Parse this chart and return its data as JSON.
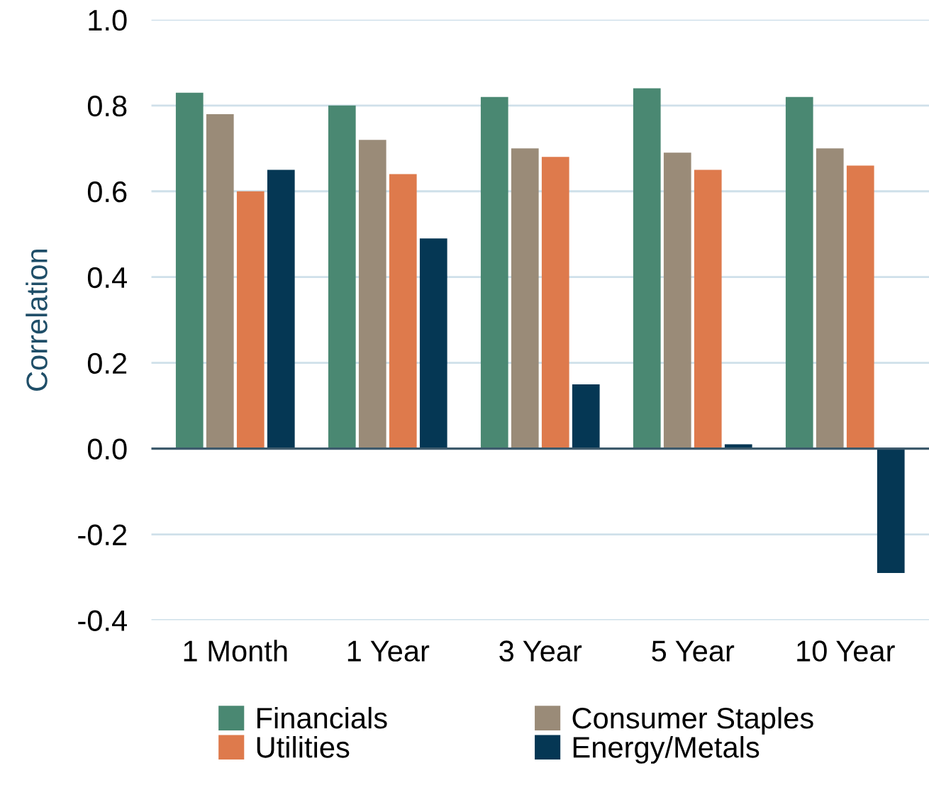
{
  "chart_data": {
    "type": "bar",
    "ylabel": "Correlation",
    "categories": [
      "1 Month",
      "1 Year",
      "3 Year",
      "5 Year",
      "10 Year"
    ],
    "series": [
      {
        "name": "Financials",
        "color": "#4a8872",
        "values": [
          0.83,
          0.8,
          0.82,
          0.84,
          0.82
        ]
      },
      {
        "name": "Consumer Staples",
        "color": "#9a8b78",
        "values": [
          0.78,
          0.72,
          0.7,
          0.69,
          0.7
        ]
      },
      {
        "name": "Utilities",
        "color": "#de7a4c",
        "values": [
          0.6,
          0.64,
          0.68,
          0.65,
          0.66
        ]
      },
      {
        "name": "Energy/Metals",
        "color": "#053754",
        "values": [
          0.65,
          0.49,
          0.15,
          0.01,
          -0.29
        ]
      }
    ],
    "ylim": [
      -0.4,
      1.0
    ],
    "yticks": [
      {
        "value": -0.4,
        "label": "-0.4"
      },
      {
        "value": -0.2,
        "label": "-0.2"
      },
      {
        "value": 0.0,
        "label": "0.0"
      },
      {
        "value": 0.2,
        "label": "0.2"
      },
      {
        "value": 0.4,
        "label": "0.4"
      },
      {
        "value": 0.6,
        "label": "0.6"
      },
      {
        "value": 0.8,
        "label": "0.8"
      },
      {
        "value": 1.0,
        "label": "1.0"
      }
    ],
    "ref_lines": [
      {
        "axis": "y",
        "value": 0,
        "color": "#3d5a6c"
      }
    ],
    "grid": "y",
    "legend": "bottom"
  }
}
